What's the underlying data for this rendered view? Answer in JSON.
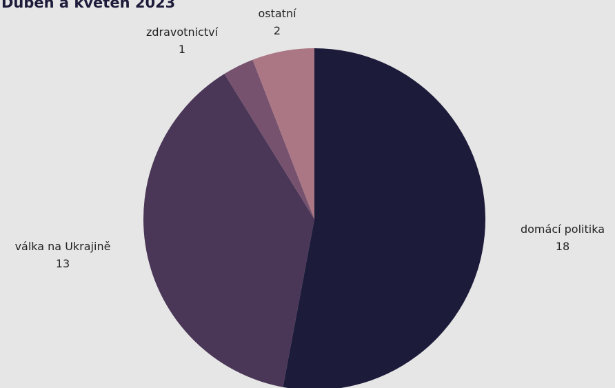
{
  "title": "Duben a květen 2023",
  "chart_data": {
    "type": "pie",
    "title": "Duben a květen 2023",
    "slices": [
      {
        "label": "domácí politika",
        "value": 18,
        "color": "#1c1b3a"
      },
      {
        "label": "válka na Ukrajině",
        "value": 13,
        "color": "#4a3656"
      },
      {
        "label": "zdravotnictví",
        "value": 1,
        "color": "#76526e"
      },
      {
        "label": "ostatní",
        "value": 2,
        "color": "#ab7784"
      }
    ],
    "start": "top",
    "direction": "clockwise",
    "labels_outside": true
  }
}
